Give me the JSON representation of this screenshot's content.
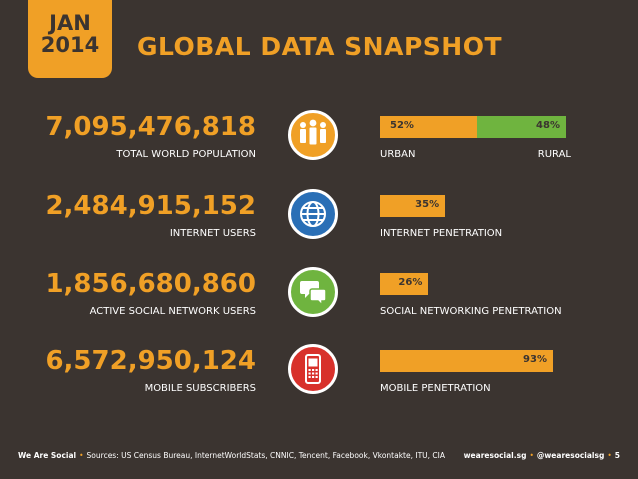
{
  "header": {
    "month": "JAN",
    "year": "2014",
    "title": "GLOBAL DATA SNAPSHOT"
  },
  "rows": [
    {
      "number": "7,095,476,818",
      "label": "TOTAL WORLD POPULATION",
      "icon": "people-icon",
      "icon_color": "#f0a026",
      "segments": [
        {
          "text": "52%",
          "value": 52,
          "color": "#f0a026"
        },
        {
          "text": "48%",
          "value": 48,
          "color": "#6fb43f"
        }
      ],
      "bar_label": "URBAN",
      "bar_label_right": "RURAL"
    },
    {
      "number": "2,484,915,152",
      "label": "INTERNET USERS",
      "icon": "globe-icon",
      "icon_color": "#2a6fb6",
      "segments": [
        {
          "text": "35%",
          "value": 35,
          "color": "#f0a026"
        }
      ],
      "bar_label": "INTERNET PENETRATION"
    },
    {
      "number": "1,856,680,860",
      "label": "ACTIVE SOCIAL NETWORK USERS",
      "icon": "chat-bubbles-icon",
      "icon_color": "#6fb43f",
      "segments": [
        {
          "text": "26%",
          "value": 26,
          "color": "#f0a026"
        }
      ],
      "bar_label": "SOCIAL NETWORKING PENETRATION"
    },
    {
      "number": "6,572,950,124",
      "label": "MOBILE SUBSCRIBERS",
      "icon": "mobile-phone-icon",
      "icon_color": "#d8312b",
      "segments": [
        {
          "text": "93%",
          "value": 93,
          "color": "#f0a026"
        }
      ],
      "bar_label": "MOBILE PENETRATION"
    }
  ],
  "footer": {
    "brand": "We Are Social",
    "sources": "Sources: US Census Bureau, InternetWorldStats, CNNIC, Tencent, Facebook, Vkontakte, ITU, CIA",
    "site": "wearesocial.sg",
    "handle": "@wearesocialsg",
    "page": "5"
  },
  "colors": {
    "background": "#3b3430",
    "accent": "#f0a026",
    "green": "#6fb43f",
    "blue": "#2a6fb6",
    "red": "#d8312b"
  }
}
